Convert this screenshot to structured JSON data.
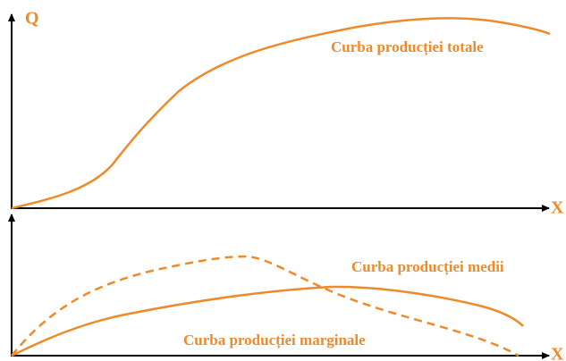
{
  "axis_labels": {
    "y": "Q",
    "x_top": "X",
    "x_bottom": "X"
  },
  "curves": {
    "total": "Curba producției totale",
    "average": "Curba producției medii",
    "marginal": "Curba producției marginale"
  }
}
